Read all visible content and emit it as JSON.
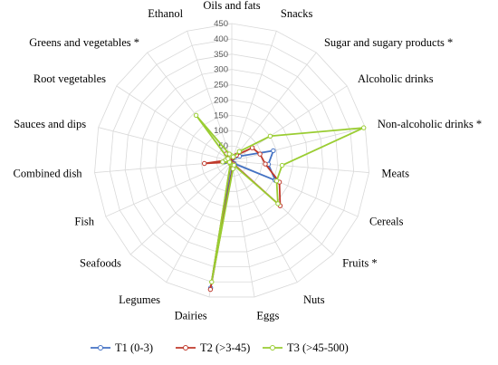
{
  "chart_data": {
    "type": "radar",
    "categories": [
      "Oils and fats",
      "Snacks",
      "Sugar and sugary products *",
      "Alcoholic drinks",
      "Non-alcoholic drinks *",
      "Meats",
      "Cereals",
      "Fruits *",
      "Nuts",
      "Eggs",
      "Dairies",
      "Legumes",
      "Seafoods",
      "Fish",
      "Combined dish",
      "Sauces and dips",
      "Root vegetables",
      "Greens and vegetables *",
      "Ethanol"
    ],
    "rlim": [
      0,
      450
    ],
    "ticks": [
      "0",
      "50",
      "100",
      "150",
      "200",
      "250",
      "300",
      "350",
      "400",
      "450"
    ],
    "series": [
      {
        "name": "T1 (0-3)",
        "color": "#4472C4",
        "values": [
          12,
          10,
          18,
          30,
          140,
          120,
          155,
          12,
          8,
          15,
          420,
          5,
          3,
          5,
          25,
          10,
          8,
          15,
          20
        ]
      },
      {
        "name": "T2 (>3-45)",
        "color": "#C0392B",
        "values": [
          15,
          12,
          25,
          80,
          95,
          110,
          170,
          215,
          10,
          20,
          425,
          8,
          5,
          7,
          90,
          15,
          10,
          30,
          15
        ]
      },
      {
        "name": "T3 (>45-500)",
        "color": "#9ACD32",
        "values": [
          18,
          15,
          40,
          150,
          445,
          165,
          160,
          205,
          15,
          25,
          400,
          10,
          8,
          8,
          30,
          20,
          15,
          190,
          25
        ]
      }
    ],
    "legend_position": "bottom",
    "grid": true
  }
}
